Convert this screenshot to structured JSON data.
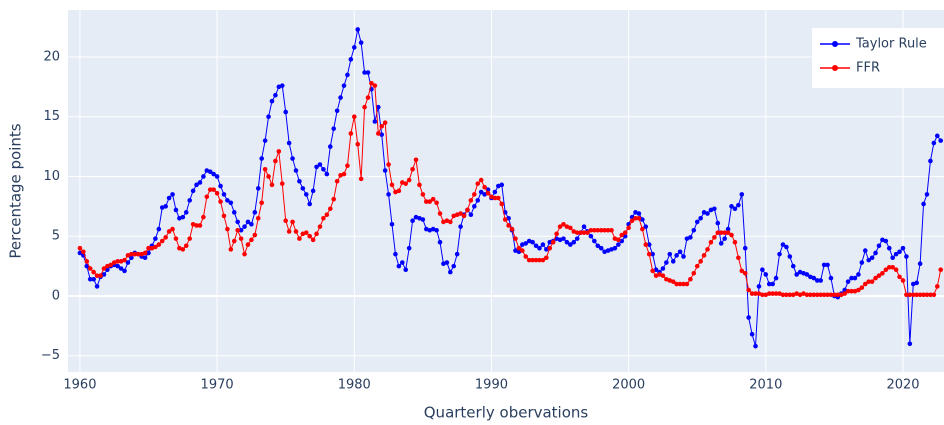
{
  "chart_data": {
    "type": "line",
    "x_label": "Quarterly obervations",
    "y_label": "Percentage points",
    "xlim": [
      1959.13,
      2022.99
    ],
    "ylim": [
      -6.36,
      23.93
    ],
    "xticks": [
      1960,
      1970,
      1980,
      1990,
      2000,
      2010,
      2020
    ],
    "yticks": [
      {
        "value": -5,
        "label": "−5"
      },
      0,
      5,
      10,
      15,
      20
    ],
    "grid": true,
    "legend": "top right",
    "x": [
      1960,
      1960.25,
      1960.5,
      1960.75,
      1961,
      1961.25,
      1961.5,
      1961.75,
      1962,
      1962.25,
      1962.5,
      1962.75,
      1963,
      1963.25,
      1963.5,
      1963.75,
      1964,
      1964.25,
      1964.5,
      1964.75,
      1965,
      1965.25,
      1965.5,
      1965.75,
      1966,
      1966.25,
      1966.5,
      1966.75,
      1967,
      1967.25,
      1967.5,
      1967.75,
      1968,
      1968.25,
      1968.5,
      1968.75,
      1969,
      1969.25,
      1969.5,
      1969.75,
      1970,
      1970.25,
      1970.5,
      1970.75,
      1971,
      1971.25,
      1971.5,
      1971.75,
      1972,
      1972.25,
      1972.5,
      1972.75,
      1973,
      1973.25,
      1973.5,
      1973.75,
      1974,
      1974.25,
      1974.5,
      1974.75,
      1975,
      1975.25,
      1975.5,
      1975.75,
      1976,
      1976.25,
      1976.5,
      1976.75,
      1977,
      1977.25,
      1977.5,
      1977.75,
      1978,
      1978.25,
      1978.5,
      1978.75,
      1979,
      1979.25,
      1979.5,
      1979.75,
      1980,
      1980.25,
      1980.5,
      1980.75,
      1981,
      1981.25,
      1981.5,
      1981.75,
      1982,
      1982.25,
      1982.5,
      1982.75,
      1983,
      1983.25,
      1983.5,
      1983.75,
      1984,
      1984.25,
      1984.5,
      1984.75,
      1985,
      1985.25,
      1985.5,
      1985.75,
      1986,
      1986.25,
      1986.5,
      1986.75,
      1987,
      1987.25,
      1987.5,
      1987.75,
      1988,
      1988.25,
      1988.5,
      1988.75,
      1989,
      1989.25,
      1989.5,
      1989.75,
      1990,
      1990.25,
      1990.5,
      1990.75,
      1991,
      1991.25,
      1991.5,
      1991.75,
      1992,
      1992.25,
      1992.5,
      1992.75,
      1993,
      1993.25,
      1993.5,
      1993.75,
      1994,
      1994.25,
      1994.5,
      1994.75,
      1995,
      1995.25,
      1995.5,
      1995.75,
      1996,
      1996.25,
      1996.5,
      1996.75,
      1997,
      1997.25,
      1997.5,
      1997.75,
      1998,
      1998.25,
      1998.5,
      1998.75,
      1999,
      1999.25,
      1999.5,
      1999.75,
      2000,
      2000.25,
      2000.5,
      2000.75,
      2001,
      2001.25,
      2001.5,
      2001.75,
      2002,
      2002.25,
      2002.5,
      2002.75,
      2003,
      2003.25,
      2003.5,
      2003.75,
      2004,
      2004.25,
      2004.5,
      2004.75,
      2005,
      2005.25,
      2005.5,
      2005.75,
      2006,
      2006.25,
      2006.5,
      2006.75,
      2007,
      2007.25,
      2007.5,
      2007.75,
      2008,
      2008.25,
      2008.5,
      2008.75,
      2009,
      2009.25,
      2009.5,
      2009.75,
      2010,
      2010.25,
      2010.5,
      2010.75,
      2011,
      2011.25,
      2011.5,
      2011.75,
      2012,
      2012.25,
      2012.5,
      2012.75,
      2013,
      2013.25,
      2013.5,
      2013.75,
      2014,
      2014.25,
      2014.5,
      2014.75,
      2015,
      2015.25,
      2015.5,
      2015.75,
      2016,
      2016.25,
      2016.5,
      2016.75,
      2017,
      2017.25,
      2017.5,
      2017.75,
      2018,
      2018.25,
      2018.5,
      2018.75,
      2019,
      2019.25,
      2019.5,
      2019.75,
      2020,
      2020.25,
      2020.5,
      2020.75,
      2021,
      2021.25,
      2021.5,
      2021.75,
      2022,
      2022.25,
      2022.5,
      2022.75
    ],
    "series": [
      {
        "name": "Taylor Rule",
        "color": "#0000ff",
        "values": [
          3.6,
          3.4,
          2.5,
          1.4,
          1.4,
          0.8,
          1.6,
          1.8,
          2.2,
          2.5,
          2.6,
          2.5,
          2.3,
          2.1,
          2.8,
          3.2,
          3.6,
          3.5,
          3.3,
          3.2,
          3.6,
          4.2,
          4.8,
          5.6,
          7.4,
          7.5,
          8.2,
          8.5,
          7.2,
          6.5,
          6.6,
          7.0,
          8.0,
          8.8,
          9.3,
          9.5,
          10.0,
          10.5,
          10.4,
          10.2,
          10.0,
          9.2,
          8.5,
          8.0,
          7.8,
          7.0,
          6.2,
          5.5,
          5.8,
          6.2,
          6.0,
          7.0,
          9.0,
          11.5,
          13.0,
          15.0,
          16.3,
          16.8,
          17.5,
          17.6,
          15.4,
          12.8,
          11.5,
          10.5,
          9.6,
          9.0,
          8.5,
          7.7,
          8.8,
          10.8,
          11.0,
          10.6,
          10.2,
          12.5,
          14.0,
          15.5,
          16.6,
          17.6,
          18.5,
          19.8,
          20.8,
          22.3,
          21.2,
          18.7,
          18.7,
          17.3,
          14.6,
          15.8,
          13.5,
          10.5,
          8.5,
          6.0,
          3.5,
          2.5,
          2.8,
          2.2,
          4.0,
          6.3,
          6.6,
          6.5,
          6.4,
          5.6,
          5.5,
          5.6,
          5.5,
          4.5,
          2.7,
          2.8,
          2.0,
          2.5,
          3.5,
          5.8,
          6.8,
          7.2,
          6.8,
          7.5,
          8.0,
          8.7,
          8.5,
          8.9,
          8.2,
          8.7,
          9.2,
          9.3,
          7.0,
          6.5,
          5.5,
          3.8,
          3.7,
          4.3,
          4.4,
          4.6,
          4.5,
          4.2,
          4.0,
          4.3,
          3.9,
          4.5,
          4.6,
          4.8,
          4.7,
          4.8,
          4.5,
          4.3,
          4.5,
          4.8,
          5.3,
          5.8,
          5.4,
          5.0,
          4.6,
          4.2,
          4.0,
          3.7,
          3.8,
          3.9,
          4.0,
          4.3,
          4.6,
          5.0,
          6.0,
          6.6,
          7.0,
          6.9,
          6.4,
          5.8,
          4.3,
          3.5,
          2.2,
          2.0,
          2.3,
          2.8,
          3.5,
          2.9,
          3.4,
          3.7,
          3.3,
          4.8,
          4.9,
          5.5,
          6.2,
          6.5,
          7.0,
          6.9,
          7.2,
          7.3,
          6.1,
          4.4,
          4.8,
          5.6,
          7.5,
          7.3,
          7.6,
          8.5,
          4.0,
          -1.8,
          -3.2,
          -4.2,
          0.8,
          2.2,
          1.8,
          1.0,
          1.0,
          1.5,
          3.5,
          4.3,
          4.1,
          3.3,
          2.5,
          1.8,
          2.0,
          1.9,
          1.8,
          1.6,
          1.5,
          1.3,
          1.3,
          2.6,
          2.6,
          1.5,
          0.0,
          -0.1,
          0.2,
          0.5,
          1.2,
          1.5,
          1.5,
          1.8,
          2.8,
          3.8,
          3.0,
          3.2,
          3.6,
          4.2,
          4.7,
          4.6,
          4.0,
          3.2,
          3.5,
          3.7,
          4.0,
          3.3,
          -4.0,
          1.0,
          1.1,
          2.7,
          7.7,
          8.5,
          11.3,
          12.8,
          13.4,
          13.0
        ]
      },
      {
        "name": "FFR",
        "color": "#ff0000",
        "values": [
          4.0,
          3.7,
          2.9,
          2.3,
          2.0,
          1.7,
          1.7,
          2.3,
          2.5,
          2.6,
          2.8,
          2.9,
          2.9,
          3.0,
          3.4,
          3.5,
          3.5,
          3.5,
          3.5,
          3.6,
          4.0,
          4.0,
          4.1,
          4.3,
          4.6,
          4.9,
          5.4,
          5.6,
          4.8,
          4.0,
          3.9,
          4.2,
          4.8,
          6.0,
          5.9,
          5.9,
          6.6,
          8.3,
          8.9,
          8.9,
          8.6,
          7.9,
          6.7,
          5.6,
          3.9,
          4.6,
          5.5,
          4.8,
          3.5,
          4.3,
          4.7,
          5.1,
          6.5,
          7.8,
          10.6,
          10.0,
          9.3,
          11.3,
          12.1,
          9.4,
          6.3,
          5.4,
          6.2,
          5.4,
          4.8,
          5.2,
          5.3,
          5.0,
          4.7,
          5.2,
          5.8,
          6.5,
          6.8,
          7.3,
          8.1,
          9.6,
          10.1,
          10.2,
          10.9,
          13.6,
          15.0,
          12.7,
          9.8,
          15.8,
          16.6,
          17.8,
          17.6,
          13.6,
          14.2,
          14.5,
          11.0,
          9.3,
          8.7,
          8.8,
          9.5,
          9.4,
          9.7,
          10.6,
          11.4,
          9.3,
          8.5,
          7.9,
          7.9,
          8.1,
          7.8,
          6.9,
          6.2,
          6.3,
          6.2,
          6.7,
          6.8,
          6.9,
          6.7,
          7.2,
          8.0,
          8.5,
          9.4,
          9.7,
          9.1,
          8.6,
          8.3,
          8.2,
          8.2,
          7.7,
          6.4,
          5.9,
          5.6,
          4.8,
          4.0,
          3.8,
          3.3,
          3.0,
          3.0,
          3.0,
          3.0,
          3.0,
          3.2,
          4.0,
          4.5,
          5.2,
          5.8,
          6.0,
          5.8,
          5.7,
          5.4,
          5.3,
          5.3,
          5.3,
          5.3,
          5.5,
          5.5,
          5.5,
          5.5,
          5.5,
          5.5,
          5.5,
          4.8,
          4.7,
          5.1,
          5.3,
          5.7,
          6.3,
          6.5,
          6.5,
          5.6,
          4.3,
          3.5,
          2.1,
          1.7,
          1.8,
          1.7,
          1.4,
          1.3,
          1.2,
          1.0,
          1.0,
          1.0,
          1.0,
          1.4,
          1.9,
          2.5,
          2.9,
          3.4,
          3.9,
          4.5,
          4.9,
          5.3,
          5.3,
          5.3,
          5.3,
          5.1,
          4.5,
          3.2,
          2.1,
          1.9,
          0.5,
          0.2,
          0.2,
          0.2,
          0.1,
          0.1,
          0.2,
          0.2,
          0.2,
          0.2,
          0.1,
          0.1,
          0.1,
          0.1,
          0.2,
          0.1,
          0.2,
          0.1,
          0.1,
          0.1,
          0.1,
          0.1,
          0.1,
          0.1,
          0.1,
          0.1,
          0.1,
          0.1,
          0.2,
          0.4,
          0.4,
          0.4,
          0.5,
          0.7,
          1.0,
          1.2,
          1.2,
          1.5,
          1.7,
          1.9,
          2.2,
          2.4,
          2.4,
          2.2,
          1.6,
          1.3,
          0.1,
          0.1,
          0.1,
          0.1,
          0.1,
          0.1,
          0.1,
          0.1,
          0.1,
          0.8,
          2.2
        ]
      }
    ]
  }
}
